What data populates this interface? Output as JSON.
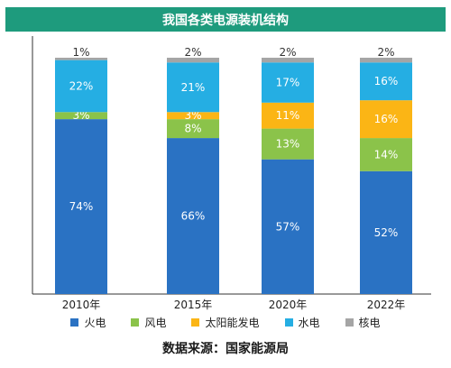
{
  "chart_data": {
    "type": "bar",
    "stacked": true,
    "title": "我国各类电源装机结构",
    "categories": [
      "2010年",
      "2015年",
      "2020年",
      "2022年"
    ],
    "series": [
      {
        "name": "火电",
        "color": "#2a72c3",
        "values": [
          74,
          66,
          57,
          52
        ],
        "labels": [
          "74%",
          "66%",
          "57%",
          "52%"
        ]
      },
      {
        "name": "风电",
        "color": "#8bc34a",
        "values": [
          3,
          8,
          13,
          14
        ],
        "labels": [
          "3%",
          "8%",
          "13%",
          "14%"
        ]
      },
      {
        "name": "太阳能发电",
        "color": "#fbb515",
        "values": [
          0,
          3,
          11,
          16
        ],
        "labels": [
          "",
          "3%",
          "11%",
          "16%"
        ]
      },
      {
        "name": "水电",
        "color": "#25aee3",
        "values": [
          22,
          21,
          17,
          16
        ],
        "labels": [
          "22%",
          "21%",
          "17%",
          "16%"
        ]
      },
      {
        "name": "核电",
        "color": "#a5a5a5",
        "values": [
          1,
          2,
          2,
          2
        ],
        "labels": [
          "1%",
          "2%",
          "2%",
          "2%"
        ]
      }
    ],
    "ylim": [
      0,
      100
    ],
    "grid": false,
    "legend_position": "bottom"
  },
  "source": "数据来源：国家能源局"
}
